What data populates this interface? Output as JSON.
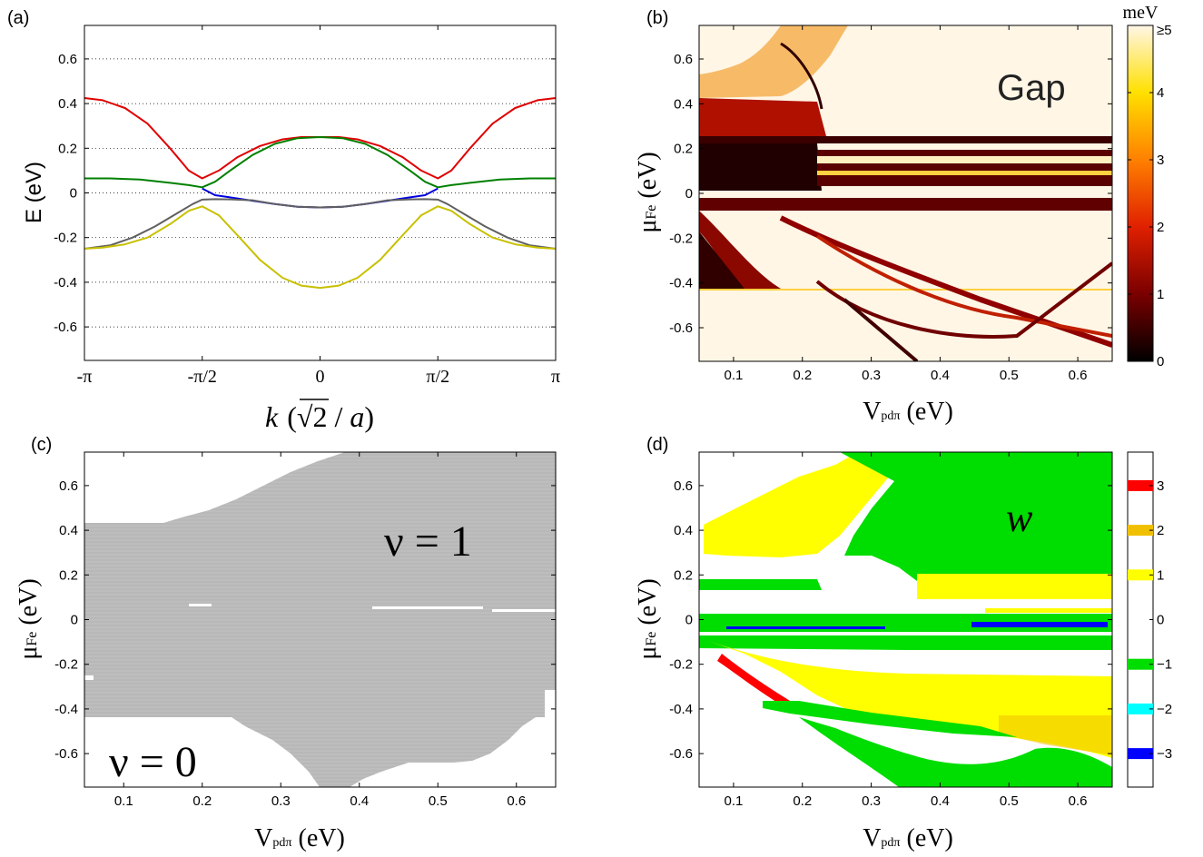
{
  "chart_data": [
    {
      "panel_label": "(a)",
      "type": "line",
      "ylabel": "E (eV)",
      "xlabel_parts": {
        "k": "k",
        "open": "(",
        "sqrt": "√",
        "two": "2",
        "rest": " / ",
        "a": "a",
        "close": ")"
      },
      "xlim": [
        -3.14159,
        3.14159
      ],
      "ylim": [
        -0.75,
        0.75
      ],
      "x_ticks": [
        {
          "value": -3.14159,
          "label": "-π"
        },
        {
          "value": -1.5708,
          "label": "-π/2"
        },
        {
          "value": 0,
          "label": "0"
        },
        {
          "value": 1.5708,
          "label": "π/2"
        },
        {
          "value": 3.14159,
          "label": "π"
        }
      ],
      "y_ticks": [
        {
          "value": 0.6,
          "label": "0.6"
        },
        {
          "value": 0.4,
          "label": "0.4"
        },
        {
          "value": 0.2,
          "label": "0.2"
        },
        {
          "value": 0,
          "label": "0"
        },
        {
          "value": -0.2,
          "label": "-0.2"
        },
        {
          "value": -0.4,
          "label": "-0.4"
        },
        {
          "value": -0.6,
          "label": "-0.6"
        }
      ],
      "grid": "horizontal dotted",
      "series": [
        {
          "color": "#e00000",
          "x": [
            -3.1416,
            -2.9,
            -2.6,
            -2.3,
            -2.0,
            -1.75,
            -1.5708,
            -1.35,
            -1.1,
            -0.8,
            -0.5,
            -0.25,
            0,
            0.25,
            0.5,
            0.8,
            1.1,
            1.35,
            1.5708,
            1.75,
            2.0,
            2.3,
            2.6,
            2.9,
            3.1416
          ],
          "y": [
            0.425,
            0.415,
            0.38,
            0.31,
            0.2,
            0.1,
            0.065,
            0.1,
            0.16,
            0.21,
            0.24,
            0.25,
            0.25,
            0.25,
            0.24,
            0.21,
            0.16,
            0.1,
            0.065,
            0.1,
            0.2,
            0.31,
            0.38,
            0.415,
            0.425
          ]
        },
        {
          "color": "#008000",
          "x": [
            -3.1416,
            -2.8,
            -2.4,
            -2.0,
            -1.75,
            -1.5708,
            -1.4,
            -1.2,
            -0.9,
            -0.6,
            -0.3,
            0,
            0.3,
            0.6,
            0.9,
            1.2,
            1.4,
            1.5708,
            1.75,
            2.0,
            2.4,
            2.8,
            3.1416
          ],
          "y": [
            0.065,
            0.065,
            0.06,
            0.045,
            0.035,
            0.025,
            0.05,
            0.1,
            0.17,
            0.22,
            0.245,
            0.25,
            0.245,
            0.22,
            0.17,
            0.1,
            0.05,
            0.025,
            0.035,
            0.045,
            0.06,
            0.065,
            0.065
          ]
        },
        {
          "color": "#0000e0",
          "x": [
            -1.5708,
            -1.4,
            -1.2,
            -0.9,
            -0.6,
            -0.3,
            0,
            0.3,
            0.6,
            0.9,
            1.2,
            1.4,
            1.5708
          ],
          "y": [
            0.02,
            -0.01,
            -0.02,
            -0.035,
            -0.05,
            -0.062,
            -0.065,
            -0.062,
            -0.05,
            -0.035,
            -0.02,
            -0.01,
            0.02
          ]
        },
        {
          "color": "#606060",
          "x": [
            -3.1416,
            -2.8,
            -2.5,
            -2.2,
            -1.9,
            -1.7,
            -1.5708,
            -1.4,
            -1.2,
            -0.9,
            -0.6,
            -0.3,
            0,
            0.3,
            0.6,
            0.9,
            1.2,
            1.4,
            1.5708,
            1.7,
            1.9,
            2.2,
            2.5,
            2.8,
            3.1416
          ],
          "y": [
            -0.25,
            -0.235,
            -0.2,
            -0.15,
            -0.09,
            -0.05,
            -0.03,
            -0.028,
            -0.029,
            -0.033,
            -0.05,
            -0.062,
            -0.065,
            -0.062,
            -0.05,
            -0.033,
            -0.029,
            -0.028,
            -0.03,
            -0.05,
            -0.09,
            -0.15,
            -0.2,
            -0.235,
            -0.25
          ]
        },
        {
          "color": "#c8c000",
          "x": [
            -3.1416,
            -2.9,
            -2.6,
            -2.3,
            -2.0,
            -1.75,
            -1.5708,
            -1.35,
            -1.1,
            -0.8,
            -0.5,
            -0.25,
            0,
            0.25,
            0.5,
            0.8,
            1.1,
            1.35,
            1.5708,
            1.75,
            2.0,
            2.3,
            2.6,
            2.9,
            3.1416
          ],
          "y": [
            -0.25,
            -0.245,
            -0.23,
            -0.2,
            -0.14,
            -0.08,
            -0.06,
            -0.1,
            -0.19,
            -0.3,
            -0.38,
            -0.415,
            -0.425,
            -0.415,
            -0.38,
            -0.3,
            -0.19,
            -0.1,
            -0.06,
            -0.08,
            -0.14,
            -0.2,
            -0.23,
            -0.245,
            -0.25
          ]
        }
      ]
    },
    {
      "panel_label": "(b)",
      "type": "heatmap",
      "annotation": "Gap",
      "ylabel_main": "μ",
      "ylabel_sub": "Fe",
      "ylabel_unit": " (eV)",
      "xlabel_main": "V",
      "xlabel_sub": "pdπ",
      "xlabel_unit": " (eV)",
      "xlim": [
        0.05,
        0.65
      ],
      "ylim": [
        -0.75,
        0.75
      ],
      "x_ticks": [
        "0.1",
        "0.2",
        "0.3",
        "0.4",
        "0.5",
        "0.6"
      ],
      "y_ticks": [
        "0.6",
        "0.4",
        "0.2",
        "0",
        "-0.2",
        "-0.4",
        "-0.6"
      ],
      "colorbar_unit": "meV",
      "colorbar_ticks": [
        "≥5",
        "4",
        "3",
        "2",
        "1",
        "0"
      ],
      "colorbar_range": [
        0,
        5
      ],
      "colormap": [
        "#000000",
        "#7a0000",
        "#e02000",
        "#ff8000",
        "#ffe000",
        "#fff6e6"
      ]
    },
    {
      "panel_label": "(c)",
      "type": "heatmap",
      "annotation_top": "ν = 1",
      "annotation_bottom": "ν = 0",
      "ylabel_main": "μ",
      "ylabel_sub": "Fe",
      "ylabel_unit": " (eV)",
      "xlabel_main": "V",
      "xlabel_sub": "pdπ",
      "xlabel_unit": " (eV)",
      "xlim": [
        0.05,
        0.65
      ],
      "ylim": [
        -0.75,
        0.75
      ],
      "x_ticks": [
        "0.1",
        "0.2",
        "0.3",
        "0.4",
        "0.5",
        "0.6"
      ],
      "y_ticks": [
        "0.6",
        "0.4",
        "0.2",
        "0",
        "-0.2",
        "-0.4",
        "-0.6"
      ],
      "fill_color": "#bdbdbd",
      "categories": [
        "ν = 0",
        "ν = 1"
      ]
    },
    {
      "panel_label": "(d)",
      "type": "heatmap",
      "annotation": "w",
      "ylabel_main": "μ",
      "ylabel_sub": "Fe",
      "ylabel_unit": " (eV)",
      "xlabel_main": "V",
      "xlabel_sub": "pdπ",
      "xlabel_unit": " (eV)",
      "xlim": [
        0.05,
        0.65
      ],
      "ylim": [
        -0.75,
        0.75
      ],
      "x_ticks": [
        "0.1",
        "0.2",
        "0.3",
        "0.4",
        "0.5",
        "0.6"
      ],
      "y_ticks": [
        "0.6",
        "0.4",
        "0.2",
        "0",
        "-0.2",
        "-0.4",
        "-0.6"
      ],
      "colorbar_entries": [
        {
          "label": "3",
          "color": "#ff0000"
        },
        {
          "label": "2",
          "color": "#f0c000"
        },
        {
          "label": "1",
          "color": "#ffff00"
        },
        {
          "label": "0",
          "color": "#ffffff"
        },
        {
          "label": "−1",
          "color": "#00dd00"
        },
        {
          "label": "−2",
          "color": "#00ffff"
        },
        {
          "label": "−3",
          "color": "#0000ff"
        }
      ]
    }
  ]
}
